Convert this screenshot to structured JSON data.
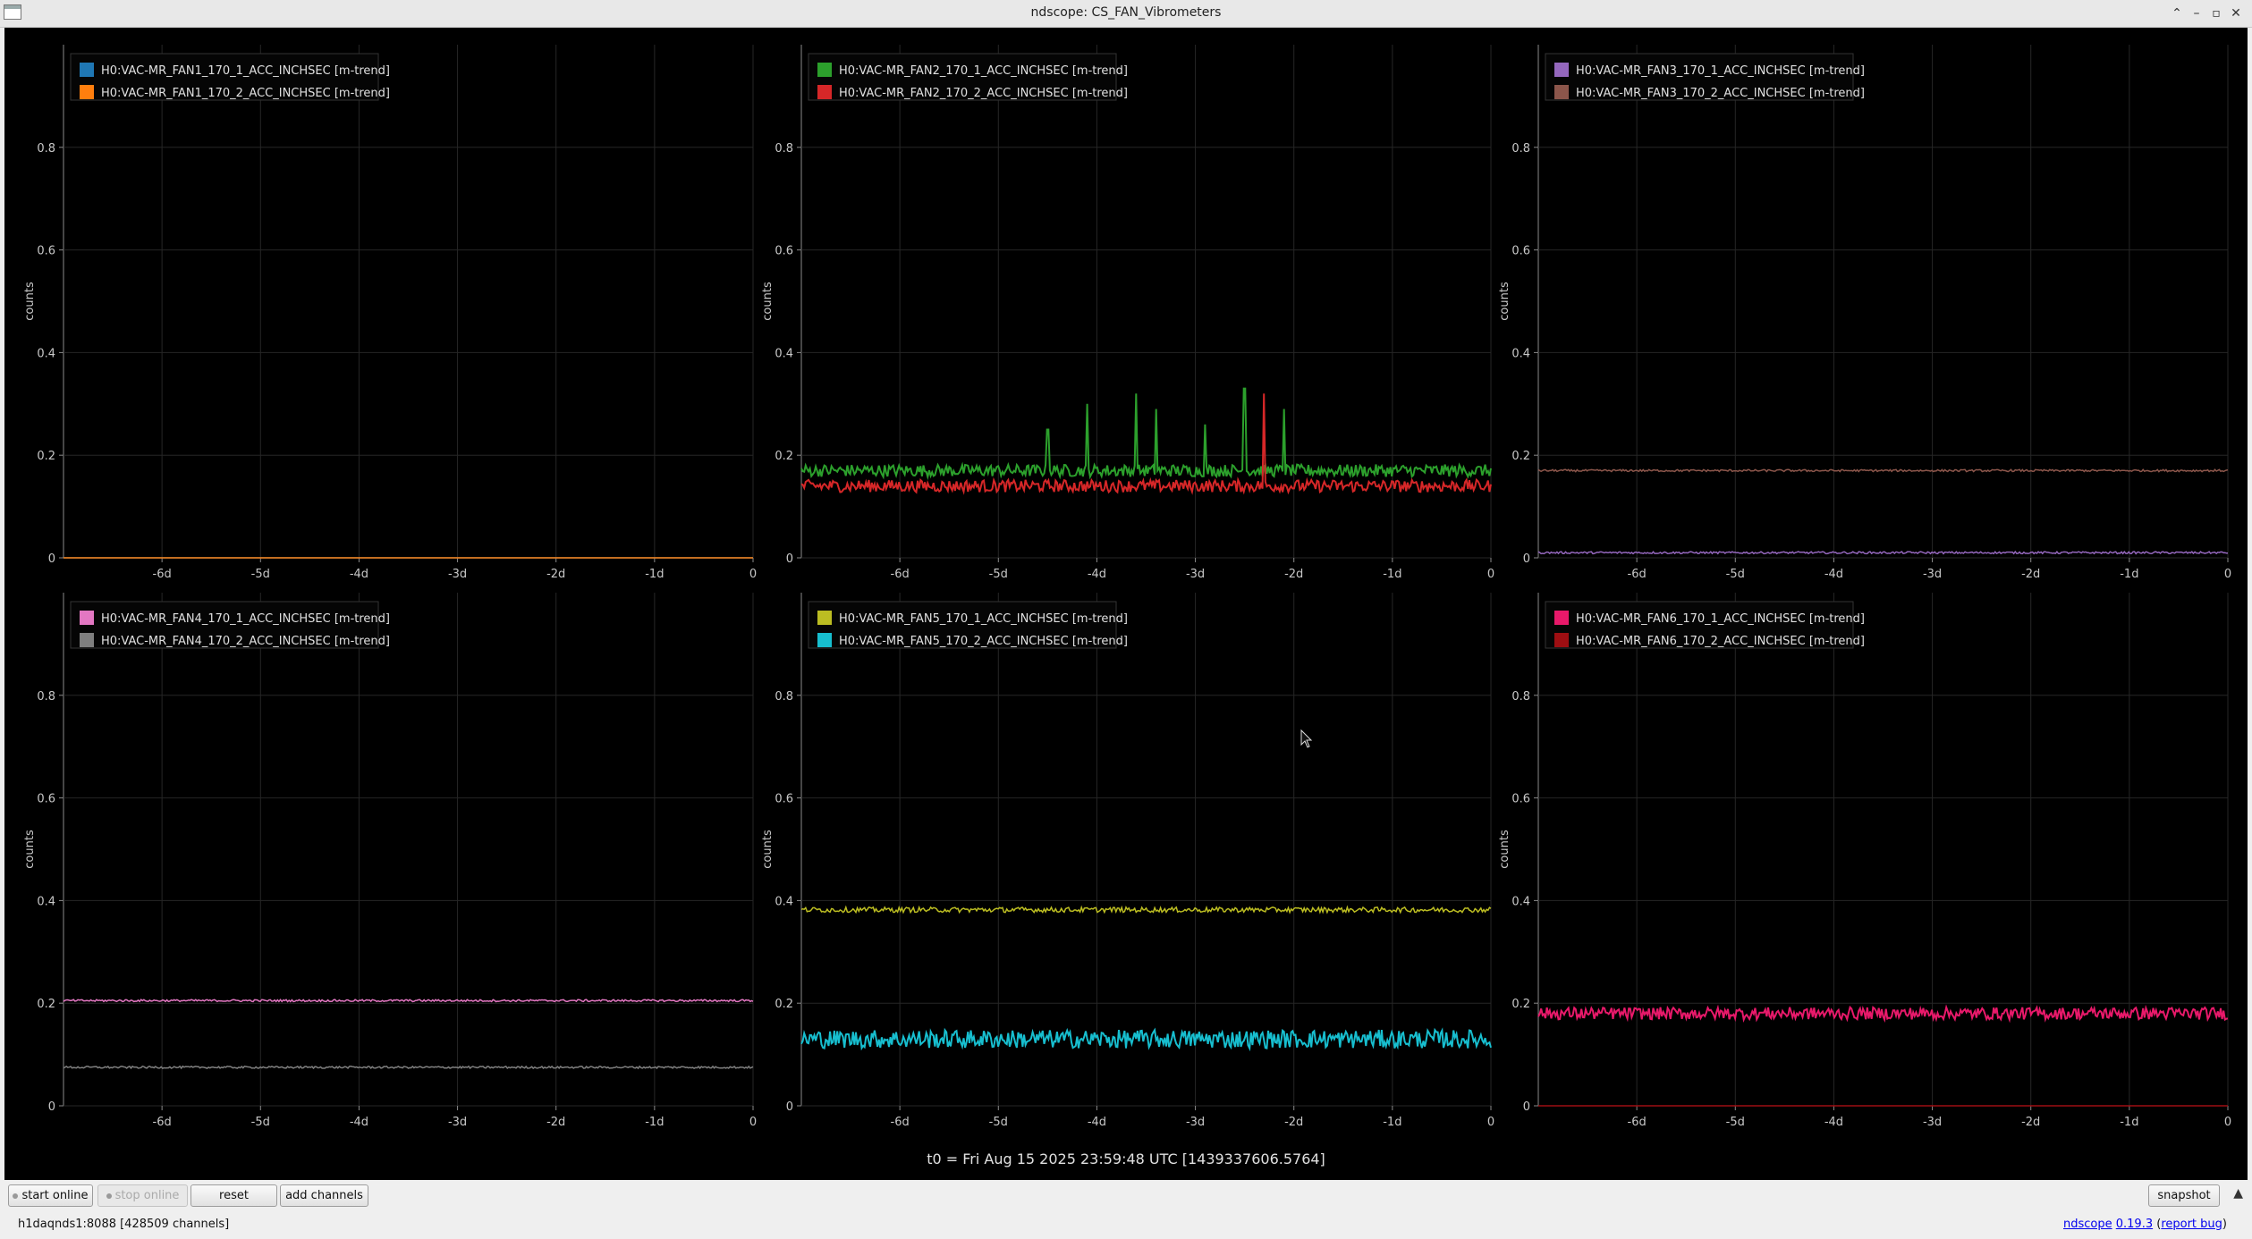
{
  "window": {
    "title": "ndscope: CS_FAN_Vibrometers"
  },
  "panels": [
    {
      "ylabel": "counts",
      "legend": [
        {
          "name": "H0:VAC-MR_FAN1_170_1_ACC_INCHSEC [m-trend]",
          "color": "#1f77b4"
        },
        {
          "name": "H0:VAC-MR_FAN1_170_2_ACC_INCHSEC [m-trend]",
          "color": "#ff7f0e"
        }
      ]
    },
    {
      "ylabel": "counts",
      "legend": [
        {
          "name": "H0:VAC-MR_FAN2_170_1_ACC_INCHSEC [m-trend]",
          "color": "#2ca02c"
        },
        {
          "name": "H0:VAC-MR_FAN2_170_2_ACC_INCHSEC [m-trend]",
          "color": "#d62728"
        }
      ]
    },
    {
      "ylabel": "counts",
      "legend": [
        {
          "name": "H0:VAC-MR_FAN3_170_1_ACC_INCHSEC [m-trend]",
          "color": "#9467bd"
        },
        {
          "name": "H0:VAC-MR_FAN3_170_2_ACC_INCHSEC [m-trend]",
          "color": "#8c564b"
        }
      ]
    },
    {
      "ylabel": "counts",
      "legend": [
        {
          "name": "H0:VAC-MR_FAN4_170_1_ACC_INCHSEC [m-trend]",
          "color": "#e377c2"
        },
        {
          "name": "H0:VAC-MR_FAN4_170_2_ACC_INCHSEC [m-trend]",
          "color": "#7f7f7f"
        }
      ]
    },
    {
      "ylabel": "counts",
      "legend": [
        {
          "name": "H0:VAC-MR_FAN5_170_1_ACC_INCHSEC [m-trend]",
          "color": "#bcbd22"
        },
        {
          "name": "H0:VAC-MR_FAN5_170_2_ACC_INCHSEC [m-trend]",
          "color": "#17becf"
        }
      ]
    },
    {
      "ylabel": "counts",
      "legend": [
        {
          "name": "H0:VAC-MR_FAN6_170_1_ACC_INCHSEC [m-trend]",
          "color": "#e8196a"
        },
        {
          "name": "H0:VAC-MR_FAN6_170_2_ACC_INCHSEC [m-trend]",
          "color": "#9e0e12"
        }
      ]
    }
  ],
  "chart_data": [
    {
      "type": "line",
      "ylabel": "counts",
      "ylim": [
        0,
        1
      ],
      "xlim": [
        -7,
        0
      ],
      "grid": true,
      "legend_position": "top-left",
      "xticks": [
        "-6d",
        "-5d",
        "-4d",
        "-3d",
        "-2d",
        "-1d",
        "0"
      ],
      "yticks": [
        "0",
        "0.2",
        "0.4",
        "0.6",
        "0.8"
      ],
      "series": [
        {
          "name": "H0:VAC-MR_FAN1_170_1_ACC_INCHSEC [m-trend]",
          "mean": 0.0,
          "noise": 0.0
        },
        {
          "name": "H0:VAC-MR_FAN1_170_2_ACC_INCHSEC [m-trend]",
          "mean": 0.0,
          "noise": 0.0
        }
      ]
    },
    {
      "type": "line",
      "ylabel": "counts",
      "ylim": [
        0,
        1
      ],
      "xlim": [
        -7,
        0
      ],
      "grid": true,
      "legend_position": "top-left",
      "xticks": [
        "-6d",
        "-5d",
        "-4d",
        "-3d",
        "-2d",
        "-1d",
        "0"
      ],
      "yticks": [
        "0",
        "0.2",
        "0.4",
        "0.6",
        "0.8"
      ],
      "series": [
        {
          "name": "H0:VAC-MR_FAN2_170_1_ACC_INCHSEC [m-trend]",
          "mean": 0.17,
          "noise": 0.012,
          "spikes": [
            [
              -4.1,
              0.3
            ],
            [
              -3.6,
              0.32
            ],
            [
              -3.4,
              0.29
            ],
            [
              -2.5,
              0.33
            ],
            [
              -2.1,
              0.29
            ],
            [
              -4.5,
              0.25
            ],
            [
              -2.9,
              0.26
            ]
          ]
        },
        {
          "name": "H0:VAC-MR_FAN2_170_2_ACC_INCHSEC [m-trend]",
          "mean": 0.14,
          "noise": 0.012,
          "spikes": [
            [
              -2.3,
              0.32
            ]
          ]
        }
      ]
    },
    {
      "type": "line",
      "ylabel": "counts",
      "ylim": [
        0,
        1
      ],
      "xlim": [
        -7,
        0
      ],
      "grid": true,
      "legend_position": "top-left",
      "xticks": [
        "-6d",
        "-5d",
        "-4d",
        "-3d",
        "-2d",
        "-1d",
        "0"
      ],
      "yticks": [
        "0",
        "0.2",
        "0.4",
        "0.6",
        "0.8"
      ],
      "series": [
        {
          "name": "H0:VAC-MR_FAN3_170_1_ACC_INCHSEC [m-trend]",
          "mean": 0.01,
          "noise": 0.002
        },
        {
          "name": "H0:VAC-MR_FAN3_170_2_ACC_INCHSEC [m-trend]",
          "mean": 0.17,
          "noise": 0.002
        }
      ]
    },
    {
      "type": "line",
      "ylabel": "counts",
      "ylim": [
        0,
        1
      ],
      "xlim": [
        -7,
        0
      ],
      "grid": true,
      "legend_position": "top-left",
      "xticks": [
        "-6d",
        "-5d",
        "-4d",
        "-3d",
        "-2d",
        "-1d",
        "0"
      ],
      "yticks": [
        "0",
        "0.2",
        "0.4",
        "0.6",
        "0.8"
      ],
      "series": [
        {
          "name": "H0:VAC-MR_FAN4_170_1_ACC_INCHSEC [m-trend]",
          "mean": 0.205,
          "noise": 0.002
        },
        {
          "name": "H0:VAC-MR_FAN4_170_2_ACC_INCHSEC [m-trend]",
          "mean": 0.075,
          "noise": 0.002
        }
      ]
    },
    {
      "type": "line",
      "ylabel": "counts",
      "ylim": [
        0,
        1
      ],
      "xlim": [
        -7,
        0
      ],
      "grid": true,
      "legend_position": "top-left",
      "xticks": [
        "-6d",
        "-5d",
        "-4d",
        "-3d",
        "-2d",
        "-1d",
        "0"
      ],
      "yticks": [
        "0",
        "0.2",
        "0.4",
        "0.6",
        "0.8"
      ],
      "series": [
        {
          "name": "H0:VAC-MR_FAN5_170_1_ACC_INCHSEC [m-trend]",
          "mean": 0.382,
          "noise": 0.005
        },
        {
          "name": "H0:VAC-MR_FAN5_170_2_ACC_INCHSEC [m-trend]",
          "mean": 0.13,
          "noise": 0.018
        }
      ]
    },
    {
      "type": "line",
      "ylabel": "counts",
      "ylim": [
        0,
        1
      ],
      "xlim": [
        -7,
        0
      ],
      "grid": true,
      "legend_position": "top-left",
      "xticks": [
        "-6d",
        "-5d",
        "-4d",
        "-3d",
        "-2d",
        "-1d",
        "0"
      ],
      "yticks": [
        "0",
        "0.2",
        "0.4",
        "0.6",
        "0.8"
      ],
      "series": [
        {
          "name": "H0:VAC-MR_FAN6_170_1_ACC_INCHSEC [m-trend]",
          "mean": 0.18,
          "noise": 0.012
        },
        {
          "name": "H0:VAC-MR_FAN6_170_2_ACC_INCHSEC [m-trend]",
          "mean": 0.0,
          "noise": 0.0
        }
      ]
    }
  ],
  "t0_label": "t0 = Fri Aug 15 2025 23:59:48 UTC [1439337606.5764]",
  "toolbar": {
    "start_online": "start online",
    "stop_online": "stop online",
    "reset": "reset",
    "add_channels": "add channels",
    "snapshot": "snapshot"
  },
  "status": {
    "server": "h1daqnds1:8088  [428509 channels]",
    "app_name": "ndscope",
    "version": "0.19.3",
    "report_bug": "report bug"
  }
}
